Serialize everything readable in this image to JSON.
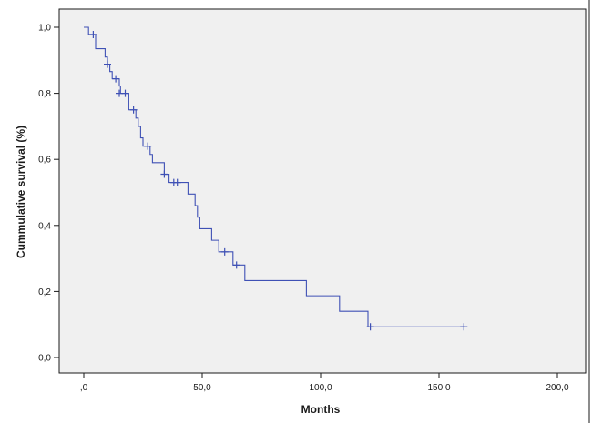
{
  "chart_data": {
    "type": "line",
    "subtype": "kaplan-meier-step",
    "title": "",
    "xlabel": "Months",
    "ylabel": "Cummulative survival (%)",
    "xlim": [
      0,
      200
    ],
    "ylim": [
      0,
      1.0
    ],
    "x_ticks": [
      0,
      50,
      100,
      150,
      200
    ],
    "x_tick_labels": [
      ",0",
      "50,0",
      "100,0",
      "150,0",
      "200,0"
    ],
    "y_ticks": [
      0,
      0.2,
      0.4,
      0.6,
      0.8,
      1.0
    ],
    "y_tick_labels": [
      "0,0",
      "0,2",
      "0,4",
      "0,6",
      "0,8",
      "1,0"
    ],
    "grid": false,
    "legend": "none",
    "colors": {
      "plot_background": "#f0f0f0",
      "line": "#3f51b5",
      "axis": "#1a1a1a"
    },
    "series": [
      {
        "steps": [
          {
            "x": 0,
            "y": 1.0
          },
          {
            "x": 2,
            "y": 0.978
          },
          {
            "x": 5,
            "y": 0.935
          },
          {
            "x": 9,
            "y": 0.91
          },
          {
            "x": 10,
            "y": 0.888
          },
          {
            "x": 11,
            "y": 0.866
          },
          {
            "x": 12,
            "y": 0.844
          },
          {
            "x": 15,
            "y": 0.822
          },
          {
            "x": 15.5,
            "y": 0.8
          },
          {
            "x": 19,
            "y": 0.75
          },
          {
            "x": 22,
            "y": 0.725
          },
          {
            "x": 23,
            "y": 0.7
          },
          {
            "x": 24,
            "y": 0.665
          },
          {
            "x": 25,
            "y": 0.64
          },
          {
            "x": 28,
            "y": 0.615
          },
          {
            "x": 29,
            "y": 0.59
          },
          {
            "x": 34,
            "y": 0.555
          },
          {
            "x": 36,
            "y": 0.53
          },
          {
            "x": 44,
            "y": 0.495
          },
          {
            "x": 47,
            "y": 0.46
          },
          {
            "x": 48,
            "y": 0.425
          },
          {
            "x": 49,
            "y": 0.39
          },
          {
            "x": 54,
            "y": 0.355
          },
          {
            "x": 57,
            "y": 0.32
          },
          {
            "x": 63,
            "y": 0.28
          },
          {
            "x": 68,
            "y": 0.233
          },
          {
            "x": 94,
            "y": 0.187
          },
          {
            "x": 108,
            "y": 0.14
          },
          {
            "x": 120,
            "y": 0.093
          },
          {
            "x": 161,
            "y": 0.093
          }
        ],
        "censored": [
          {
            "x": 4,
            "y": 0.978
          },
          {
            "x": 10,
            "y": 0.888
          },
          {
            "x": 13.5,
            "y": 0.844
          },
          {
            "x": 15,
            "y": 0.8
          },
          {
            "x": 17.5,
            "y": 0.8
          },
          {
            "x": 21,
            "y": 0.75
          },
          {
            "x": 27,
            "y": 0.64
          },
          {
            "x": 34,
            "y": 0.555
          },
          {
            "x": 38,
            "y": 0.53
          },
          {
            "x": 39.5,
            "y": 0.53
          },
          {
            "x": 59.5,
            "y": 0.32
          },
          {
            "x": 64.5,
            "y": 0.28
          },
          {
            "x": 121,
            "y": 0.093
          },
          {
            "x": 160.5,
            "y": 0.093
          }
        ]
      }
    ]
  }
}
